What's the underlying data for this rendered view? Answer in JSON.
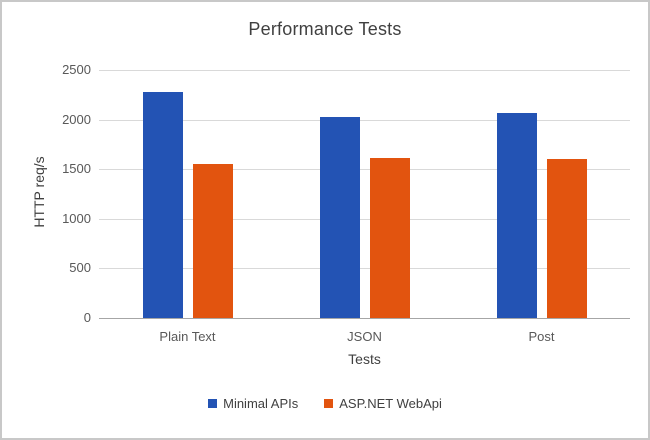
{
  "frame": {
    "border_color": "#C8C8C8",
    "background_color": "#FFFFFF"
  },
  "chart_data": {
    "type": "bar",
    "title": "Performance Tests",
    "xlabel": "Tests",
    "ylabel": "HTTP req/s",
    "categories": [
      "Plain Text",
      "JSON",
      "Post"
    ],
    "series": [
      {
        "name": "Minimal APIs",
        "color": "#2353B4",
        "values": [
          2280,
          2030,
          2070
        ]
      },
      {
        "name": "ASP.NET WebApi",
        "color": "#E2540F",
        "values": [
          1550,
          1610,
          1600
        ]
      }
    ],
    "ylim": [
      0,
      2500
    ],
    "yticks": [
      0,
      500,
      1000,
      1500,
      2000,
      2500
    ],
    "grid": true,
    "legend_position": "bottom",
    "colors": {
      "gridline": "#D9D9D9",
      "axis_line": "#A6A6A6",
      "title_text": "#404040",
      "tick_text": "#595959",
      "axis_title_text": "#404040",
      "legend_text": "#404040"
    }
  }
}
